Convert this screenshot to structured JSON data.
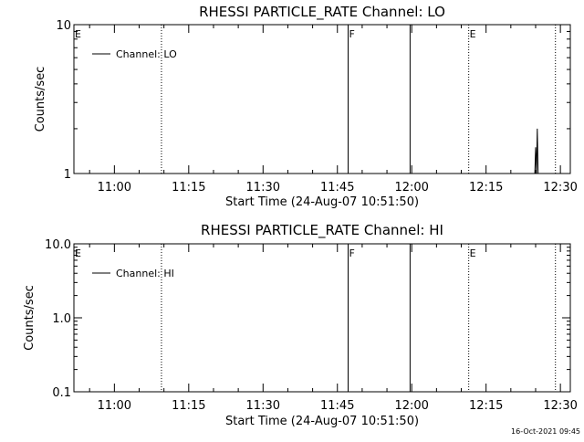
{
  "timestamp": "16-Oct-2021 09:45",
  "chart_data": [
    {
      "type": "line",
      "title": "RHESSI PARTICLE_RATE Channel: LO",
      "xlabel": "Start Time (24-Aug-07 10:51:50)",
      "ylabel": "Counts/sec",
      "y_scale": "log",
      "ylim": [
        1,
        10
      ],
      "y_ticks": [
        {
          "value": 1,
          "label": "1"
        },
        {
          "value": 10,
          "label": "10"
        }
      ],
      "xlim": [
        "10:51:50",
        "12:32:00"
      ],
      "x_ticks": [
        "11:00",
        "11:15",
        "11:30",
        "11:45",
        "12:00",
        "12:15",
        "12:30"
      ],
      "legend": {
        "placement": "top-left",
        "label": "Channel: LO"
      },
      "flag_lines": [
        {
          "time": "10:51:50",
          "label": "E",
          "style": "solid"
        },
        {
          "time": "11:09:30",
          "label": "",
          "style": "dotted"
        },
        {
          "time": "11:47:10",
          "label": "F",
          "style": "solid"
        },
        {
          "time": "11:59:40",
          "label": "",
          "style": "solid"
        },
        {
          "time": "12:11:30",
          "label": "E",
          "style": "dotted"
        },
        {
          "time": "12:29:00",
          "label": "",
          "style": "dotted"
        }
      ],
      "series": [
        {
          "name": "Channel: LO",
          "points": [
            {
              "t": "12:24:50",
              "v": 1.0
            },
            {
              "t": "12:25:00",
              "v": 1.5
            },
            {
              "t": "12:25:10",
              "v": 1.0
            },
            {
              "t": "12:25:20",
              "v": 2.0
            },
            {
              "t": "12:25:30",
              "v": 1.0
            }
          ]
        }
      ]
    },
    {
      "type": "line",
      "title": "RHESSI PARTICLE_RATE Channel: HI",
      "xlabel": "Start Time (24-Aug-07 10:51:50)",
      "ylabel": "Counts/sec",
      "y_scale": "log",
      "ylim": [
        0.1,
        10
      ],
      "y_ticks": [
        {
          "value": 0.1,
          "label": "0.1"
        },
        {
          "value": 1,
          "label": "1.0"
        },
        {
          "value": 10,
          "label": "10.0"
        }
      ],
      "xlim": [
        "10:51:50",
        "12:32:00"
      ],
      "x_ticks": [
        "11:00",
        "11:15",
        "11:30",
        "11:45",
        "12:00",
        "12:15",
        "12:30"
      ],
      "legend": {
        "placement": "top-left",
        "label": "Channel: HI"
      },
      "flag_lines": [
        {
          "time": "10:51:50",
          "label": "E",
          "style": "solid"
        },
        {
          "time": "11:09:30",
          "label": "",
          "style": "dotted"
        },
        {
          "time": "11:47:10",
          "label": "F",
          "style": "solid"
        },
        {
          "time": "11:59:40",
          "label": "",
          "style": "solid"
        },
        {
          "time": "12:11:30",
          "label": "E",
          "style": "dotted"
        },
        {
          "time": "12:29:00",
          "label": "",
          "style": "dotted"
        }
      ],
      "series": []
    }
  ]
}
